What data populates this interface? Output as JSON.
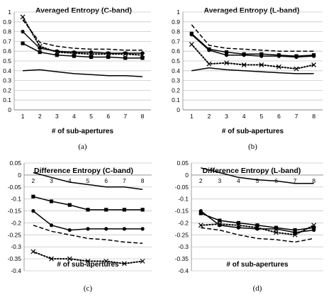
{
  "chart_data": [
    {
      "type": "line",
      "title": "Averaged Entropy (C-band)",
      "xlabel": "# of sub-apertures",
      "ylabel": "",
      "caption": "(a)",
      "x": [
        1,
        2,
        3,
        4,
        5,
        6,
        7,
        8
      ],
      "ylim": [
        0,
        1
      ],
      "yticks": [
        0,
        0.1,
        0.2,
        0.3,
        0.4,
        0.5,
        0.6,
        0.7,
        0.8,
        0.9,
        1
      ],
      "ytick_labels": [
        "0",
        "0.1",
        "0.2",
        "0.3",
        "0.4",
        "0.5",
        "0.6",
        "0.7",
        "0.8",
        "0.9",
        "1"
      ],
      "grid": "horizontal",
      "series": [
        {
          "style": "dashed",
          "marker": "none",
          "values": [
            0.92,
            0.69,
            0.65,
            0.63,
            0.62,
            0.62,
            0.61,
            0.61
          ]
        },
        {
          "style": "dotted",
          "marker": "x",
          "values": [
            0.95,
            0.65,
            0.59,
            0.58,
            0.57,
            0.57,
            0.57,
            0.56
          ]
        },
        {
          "style": "solid",
          "marker": "circle",
          "values": [
            0.8,
            0.63,
            0.6,
            0.59,
            0.59,
            0.58,
            0.58,
            0.58
          ]
        },
        {
          "style": "solid",
          "marker": "square",
          "values": [
            0.68,
            0.59,
            0.56,
            0.55,
            0.54,
            0.54,
            0.53,
            0.53
          ]
        },
        {
          "style": "solid",
          "marker": "none",
          "values": [
            0.4,
            0.41,
            0.39,
            0.37,
            0.36,
            0.35,
            0.35,
            0.34
          ]
        }
      ]
    },
    {
      "type": "line",
      "title": "Averaged Entropy (L-band)",
      "xlabel": "# of sub-apertures",
      "ylabel": "",
      "caption": "(b)",
      "x": [
        1,
        2,
        3,
        4,
        5,
        6,
        7,
        8
      ],
      "ylim": [
        0,
        1
      ],
      "yticks": [
        0,
        0.1,
        0.2,
        0.3,
        0.4,
        0.5,
        0.6,
        0.7,
        0.8,
        0.9,
        1
      ],
      "ytick_labels": [
        "0",
        "0.1",
        "0.2",
        "0.3",
        "0.4",
        "0.5",
        "0.6",
        "0.7",
        "0.8",
        "0.9",
        "1"
      ],
      "grid": "horizontal",
      "series": [
        {
          "style": "dashed",
          "marker": "none",
          "values": [
            0.87,
            0.66,
            0.63,
            0.62,
            0.61,
            0.6,
            0.6,
            0.6
          ]
        },
        {
          "style": "solid",
          "marker": "square",
          "values": [
            0.78,
            0.62,
            0.59,
            0.57,
            0.57,
            0.56,
            0.55,
            0.56
          ]
        },
        {
          "style": "solid",
          "marker": "circle",
          "values": [
            0.77,
            0.61,
            0.56,
            0.56,
            0.55,
            0.55,
            0.54,
            0.55
          ]
        },
        {
          "style": "dotted",
          "marker": "x",
          "values": [
            0.67,
            0.47,
            0.48,
            0.46,
            0.46,
            0.44,
            0.42,
            0.46
          ]
        },
        {
          "style": "solid",
          "marker": "none",
          "values": [
            0.4,
            0.43,
            0.41,
            0.4,
            0.39,
            0.38,
            0.37,
            0.37
          ]
        }
      ]
    },
    {
      "type": "line",
      "title": "Difference Entropy (C-band)",
      "xlabel": "# of sub-apertures",
      "ylabel": "",
      "caption": "(c)",
      "x": [
        2,
        3,
        4,
        5,
        6,
        7,
        8
      ],
      "ylim": [
        -0.4,
        0.05
      ],
      "yticks": [
        0.05,
        0,
        -0.05,
        -0.1,
        -0.15,
        -0.2,
        -0.25,
        -0.3,
        -0.35,
        -0.4
      ],
      "ytick_labels": [
        "0.05",
        "0",
        "-0.05",
        "-0.1",
        "-0.15",
        "-0.2",
        "-0.25",
        "-0.3",
        "-0.35",
        "-0.4"
      ],
      "grid": "horizontal",
      "series": [
        {
          "style": "solid",
          "marker": "none",
          "values": [
            0.01,
            -0.01,
            -0.03,
            -0.04,
            -0.05,
            -0.05,
            -0.06
          ]
        },
        {
          "style": "solid",
          "marker": "square",
          "values": [
            -0.09,
            -0.11,
            -0.125,
            -0.145,
            -0.145,
            -0.145,
            -0.145
          ]
        },
        {
          "style": "solid",
          "marker": "circle",
          "values": [
            -0.15,
            -0.21,
            -0.23,
            -0.225,
            -0.225,
            -0.225,
            -0.225
          ]
        },
        {
          "style": "dashed",
          "marker": "none",
          "values": [
            -0.21,
            -0.235,
            -0.25,
            -0.265,
            -0.27,
            -0.28,
            -0.285
          ]
        },
        {
          "style": "dotted",
          "marker": "x",
          "values": [
            -0.32,
            -0.35,
            -0.35,
            -0.36,
            -0.36,
            -0.37,
            -0.36
          ]
        }
      ]
    },
    {
      "type": "line",
      "title": "Difference Entropy (L-band)",
      "xlabel": "# of sub-apertures",
      "ylabel": "",
      "caption": "(d)",
      "x": [
        2,
        3,
        4,
        5,
        6,
        7,
        8
      ],
      "ylim": [
        -0.4,
        0.05
      ],
      "yticks": [
        0.05,
        0,
        -0.05,
        -0.1,
        -0.15,
        -0.2,
        -0.25,
        -0.3,
        -0.35,
        -0.4
      ],
      "ytick_labels": [
        "0.05",
        "0",
        "-0.05",
        "-0.1",
        "-0.15",
        "-0.2",
        "-0.25",
        "-0.3",
        "-0.35",
        "-0.4"
      ],
      "grid": "horizontal",
      "series": [
        {
          "style": "solid",
          "marker": "none",
          "values": [
            0.03,
            0.01,
            -0.01,
            -0.02,
            -0.025,
            -0.035,
            -0.035
          ]
        },
        {
          "style": "solid",
          "marker": "square",
          "values": [
            -0.16,
            -0.19,
            -0.2,
            -0.21,
            -0.22,
            -0.23,
            -0.22
          ]
        },
        {
          "style": "solid",
          "marker": "circle",
          "values": [
            -0.15,
            -0.21,
            -0.22,
            -0.225,
            -0.225,
            -0.24,
            -0.23
          ]
        },
        {
          "style": "dotted",
          "marker": "x",
          "values": [
            -0.21,
            -0.205,
            -0.21,
            -0.22,
            -0.24,
            -0.25,
            -0.21
          ]
        },
        {
          "style": "dashed",
          "marker": "none",
          "values": [
            -0.22,
            -0.23,
            -0.25,
            -0.265,
            -0.27,
            -0.28,
            -0.265
          ]
        }
      ]
    }
  ]
}
